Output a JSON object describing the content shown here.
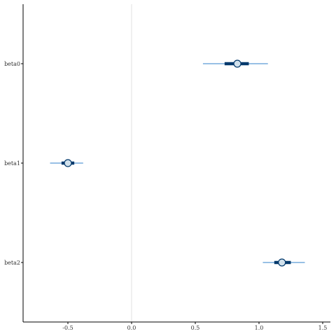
{
  "chart_data": {
    "type": "interval",
    "title": "",
    "xlabel": "",
    "ylabel": "",
    "xlim": [
      -0.85,
      1.56
    ],
    "xticks": [
      -0.5,
      0.0,
      0.5,
      1.0,
      1.5
    ],
    "xtick_labels": [
      "-0.5",
      "0.0",
      "0.5",
      "1.0",
      "1.5"
    ],
    "reference_line": 0.0,
    "grid": false,
    "categories": [
      "beta0",
      "beta1",
      "beta2"
    ],
    "estimates": [
      {
        "name": "beta0",
        "point": 0.83,
        "inner": [
          0.73,
          0.92
        ],
        "outer": [
          0.56,
          1.07
        ]
      },
      {
        "name": "beta1",
        "point": -0.5,
        "inner": [
          -0.55,
          -0.45
        ],
        "outer": [
          -0.64,
          -0.38
        ]
      },
      {
        "name": "beta2",
        "point": 1.18,
        "inner": [
          1.12,
          1.25
        ],
        "outer": [
          1.03,
          1.36
        ]
      }
    ],
    "colors": {
      "outer_line": "#5b9bd5",
      "inner_line": "#03396c",
      "point_fill": "#d1e1ec",
      "point_stroke": "#03396c",
      "reference_line": "#e0e0e0",
      "axis": "#000000"
    }
  }
}
